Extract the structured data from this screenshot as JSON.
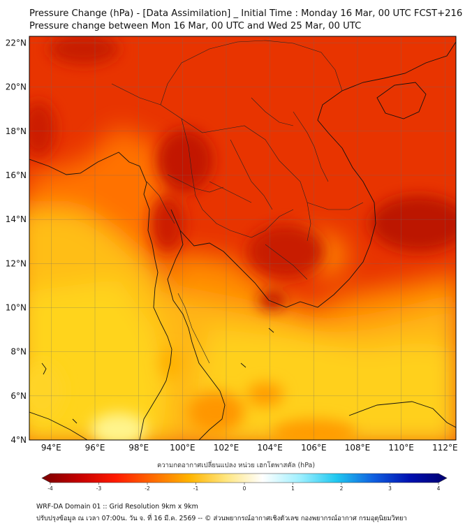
{
  "title_line1": "Pressure Change (hPa) - [Data Assimilation] _ Initial Time : Monday 16 Mar, 00 UTC FCST+216",
  "title_line2": "Pressure change between Mon 16 Mar, 00 UTC and Wed 25 Mar, 00 UTC",
  "lat_ticks": [
    "22°N",
    "20°N",
    "18°N",
    "16°N",
    "14°N",
    "12°N",
    "10°N",
    "8°N",
    "6°N",
    "4°N"
  ],
  "lat_values": [
    22,
    20,
    18,
    16,
    14,
    12,
    10,
    8,
    6,
    4
  ],
  "lon_ticks": [
    "94°E",
    "96°E",
    "98°E",
    "100°E",
    "102°E",
    "104°E",
    "106°E",
    "108°E",
    "110°E",
    "112°E"
  ],
  "lon_values": [
    94,
    96,
    98,
    100,
    102,
    104,
    106,
    108,
    110,
    112
  ],
  "extent": {
    "lon_min": 93,
    "lon_max": 112.5,
    "lat_min": 4,
    "lat_max": 22.3
  },
  "colorbar": {
    "label": "ความกดอากาศเปลี่ยนแปลง หน่วย เฮกโตพาสคัล (hPa)",
    "ticks": [
      "-4",
      "-3",
      "-2",
      "-1",
      "0",
      "1",
      "2",
      "3",
      "4"
    ],
    "tick_values": [
      -4,
      -3,
      -2,
      -1,
      0,
      1,
      2,
      3,
      4
    ],
    "colors": [
      "#7a0000",
      "#c40000",
      "#ff1a00",
      "#ff6a00",
      "#ffb400",
      "#ffe680",
      "#ffffff",
      "#a0f0ff",
      "#20c8f0",
      "#1060e0",
      "#0010b0",
      "#000070"
    ]
  },
  "footer_line1": "WRF-DA Domain 01 :: Grid Resolution 9km x 9km",
  "footer_line2": "ปรับปรุงข้อมูล ณ เวลา 07:00น. วัน จ. ที่ 16 มี.ค. 2569 -- © ส่วนพยากรณ์อากาศเชิงตัวเลข กองพยากรณ์อากาศ กรมอุตุนิยมวิทยา",
  "field_colors": {
    "deep": "#c81800",
    "red": "#e83000",
    "orange": "#ff7a00",
    "amber": "#ffa800",
    "yellow": "#ffd21e",
    "pale": "#fff07a"
  }
}
